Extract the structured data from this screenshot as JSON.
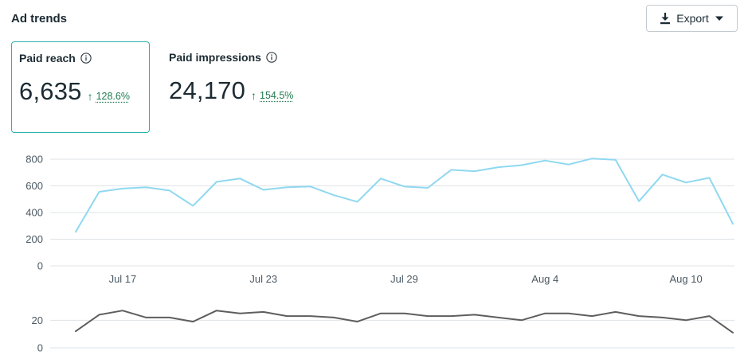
{
  "header": {
    "title": "Ad trends",
    "export_label": "Export"
  },
  "metrics": [
    {
      "label": "Paid reach",
      "value": "6,635",
      "delta": "128.6%",
      "selected": true
    },
    {
      "label": "Paid impressions",
      "value": "24,170",
      "delta": "154.5%",
      "selected": false
    }
  ],
  "colors": {
    "main_line": "#8fd8f0",
    "sub_line": "#5e5e5e",
    "grid": "#dfe3e7",
    "positive": "#1f7a4f",
    "selected_border": "#2bb3a9"
  },
  "chart_data": [
    {
      "type": "line",
      "title": "",
      "xlabel": "",
      "ylabel": "",
      "ylim": [
        0,
        800
      ],
      "yticks": [
        "0",
        "200",
        "400",
        "600",
        "800"
      ],
      "xtick_labels": [
        "Jul 17",
        "Jul 23",
        "Jul 29",
        "Aug 4",
        "Aug 10"
      ],
      "x": [
        "Jul 15",
        "Jul 16",
        "Jul 17",
        "Jul 18",
        "Jul 19",
        "Jul 20",
        "Jul 21",
        "Jul 22",
        "Jul 23",
        "Jul 24",
        "Jul 25",
        "Jul 26",
        "Jul 27",
        "Jul 28",
        "Jul 29",
        "Jul 30",
        "Jul 31",
        "Aug 1",
        "Aug 2",
        "Aug 3",
        "Aug 4",
        "Aug 5",
        "Aug 6",
        "Aug 7",
        "Aug 8",
        "Aug 9",
        "Aug 10",
        "Aug 11",
        "Aug 12"
      ],
      "series": [
        {
          "values": [
            255,
            555,
            580,
            590,
            565,
            450,
            630,
            655,
            570,
            590,
            595,
            530,
            480,
            655,
            595,
            585,
            720,
            710,
            740,
            755,
            790,
            760,
            805,
            795,
            485,
            685,
            625,
            660,
            315
          ]
        }
      ],
      "grid": true
    },
    {
      "type": "line",
      "title": "",
      "xlabel": "",
      "ylabel": "",
      "ylim": [
        0,
        30
      ],
      "yticks": [
        "0",
        "20"
      ],
      "x": [
        "Jul 15",
        "Jul 16",
        "Jul 17",
        "Jul 18",
        "Jul 19",
        "Jul 20",
        "Jul 21",
        "Jul 22",
        "Jul 23",
        "Jul 24",
        "Jul 25",
        "Jul 26",
        "Jul 27",
        "Jul 28",
        "Jul 29",
        "Jul 30",
        "Jul 31",
        "Aug 1",
        "Aug 2",
        "Aug 3",
        "Aug 4",
        "Aug 5",
        "Aug 6",
        "Aug 7",
        "Aug 8",
        "Aug 9",
        "Aug 10",
        "Aug 11",
        "Aug 12"
      ],
      "series": [
        {
          "values": [
            12,
            24,
            27,
            22,
            22,
            19,
            27,
            25,
            26,
            23,
            23,
            22,
            19,
            25,
            25,
            23,
            23,
            24,
            22,
            20,
            25,
            25,
            23,
            26,
            23,
            22,
            20,
            23,
            11
          ]
        }
      ],
      "grid": true
    }
  ]
}
